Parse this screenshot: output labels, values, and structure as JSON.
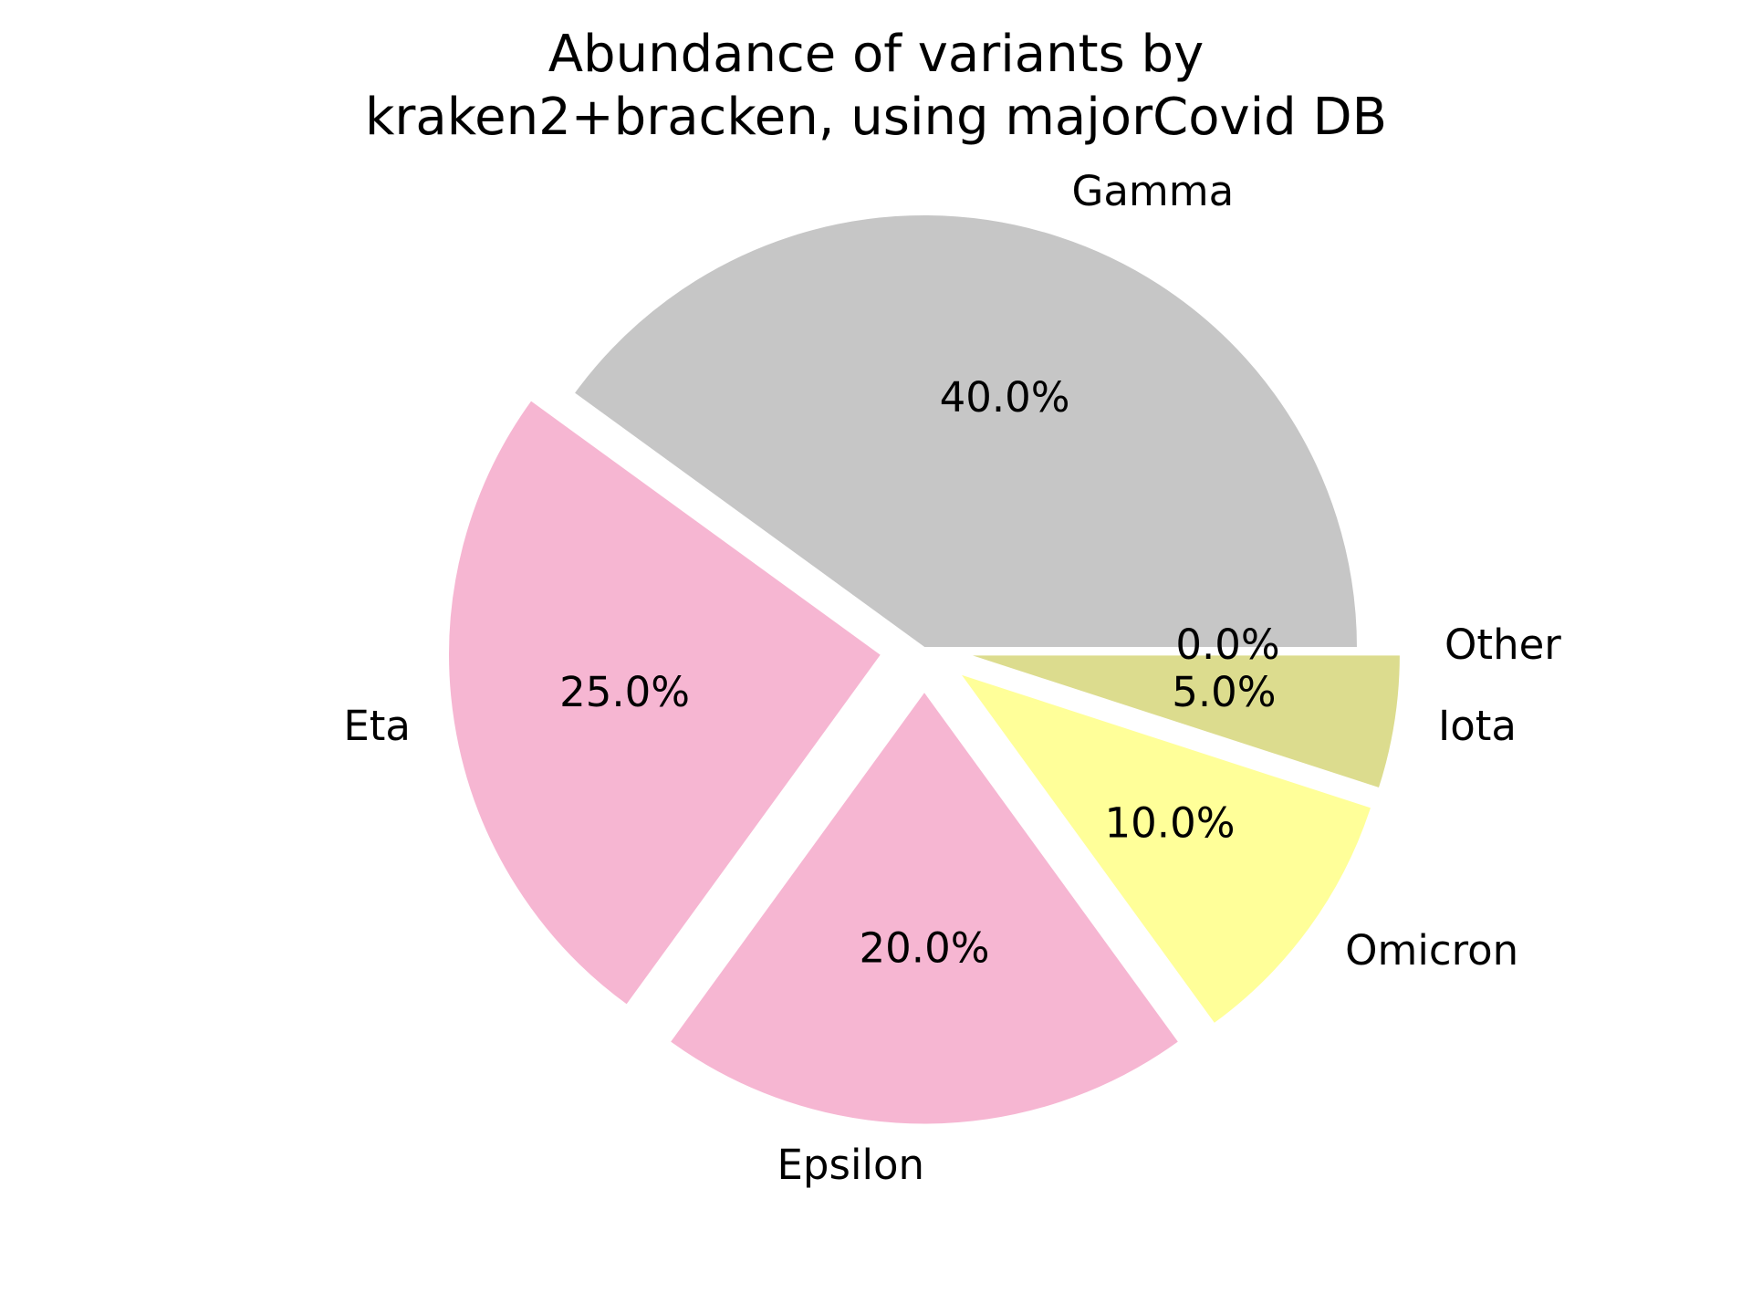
{
  "chart_data": {
    "type": "pie",
    "title_lines": [
      "Abundance of variants by",
      "kraken2+bracken, using majorCovid DB"
    ],
    "slices": [
      {
        "label": "Gamma",
        "value": 40.0,
        "percent_label": "40.0%",
        "color": "#c6c6c6",
        "exploded": false
      },
      {
        "label": "Eta",
        "value": 25.0,
        "percent_label": "25.0%",
        "color": "#f6b6d2",
        "exploded": true
      },
      {
        "label": "Epsilon",
        "value": 20.0,
        "percent_label": "20.0%",
        "color": "#f6b6d2",
        "exploded": true
      },
      {
        "label": "Omicron",
        "value": 10.0,
        "percent_label": "10.0%",
        "color": "#ffff99",
        "exploded": true
      },
      {
        "label": "Iota",
        "value": 5.0,
        "percent_label": "5.0%",
        "color": "#dcdc8e",
        "exploded": true
      },
      {
        "label": "Other",
        "value": 0.0,
        "percent_label": "0.0%",
        "color": "#bfbf7f",
        "exploded": true
      }
    ],
    "start_angle_deg": 0,
    "direction": "counterclockwise",
    "legend": "none"
  }
}
